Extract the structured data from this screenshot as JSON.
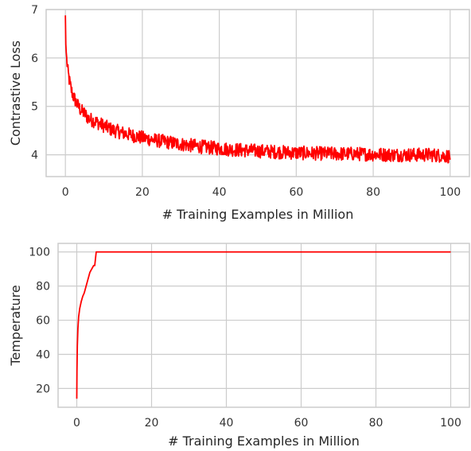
{
  "chart_data": [
    {
      "type": "line",
      "title": "",
      "xlabel": "# Training Examples in Million",
      "ylabel": "Contrastive Loss",
      "xlim": [
        -5,
        105
      ],
      "ylim": [
        3.55,
        7.0
      ],
      "xticks": [
        0,
        20,
        40,
        60,
        80,
        100
      ],
      "yticks": [
        4,
        5,
        6,
        7
      ],
      "grid": true,
      "series": [
        {
          "color": "#ff0000",
          "x": [
            0,
            0.1,
            0.3,
            0.6,
            1,
            1.5,
            2,
            3,
            4,
            5,
            6,
            8,
            10,
            12,
            15,
            20,
            25,
            30,
            35,
            40,
            45,
            50,
            55,
            60,
            65,
            70,
            75,
            80,
            85,
            90,
            95,
            100
          ],
          "y": [
            6.88,
            6.3,
            6.0,
            5.75,
            5.55,
            5.35,
            5.22,
            5.05,
            4.92,
            4.85,
            4.75,
            4.68,
            4.6,
            4.52,
            4.45,
            4.35,
            4.28,
            4.22,
            4.17,
            4.13,
            4.1,
            4.08,
            4.06,
            4.04,
            4.03,
            4.02,
            4.02,
            4.01,
            4.0,
            4.0,
            4.0,
            3.97
          ],
          "noise_amplitude": 0.18
        }
      ]
    },
    {
      "type": "line",
      "title": "",
      "xlabel": "# Training Examples in Million",
      "ylabel": "Temperature",
      "xlim": [
        -5,
        105
      ],
      "ylim": [
        9,
        105
      ],
      "xticks": [
        0,
        20,
        40,
        60,
        80,
        100
      ],
      "yticks": [
        20,
        40,
        60,
        80,
        100
      ],
      "grid": true,
      "series": [
        {
          "color": "#ff0000",
          "x": [
            0,
            0.05,
            0.15,
            0.3,
            0.5,
            0.8,
            1.2,
            1.6,
            2.0,
            2.5,
            3.0,
            3.5,
            4.0,
            4.5,
            4.8,
            5.0,
            5.2,
            10,
            20,
            40,
            60,
            80,
            100
          ],
          "y": [
            14,
            30,
            45,
            55,
            62,
            67,
            71,
            74,
            76,
            80,
            84,
            88,
            90,
            92,
            92,
            96,
            100,
            100,
            100,
            100,
            100,
            100,
            100
          ]
        }
      ]
    }
  ]
}
